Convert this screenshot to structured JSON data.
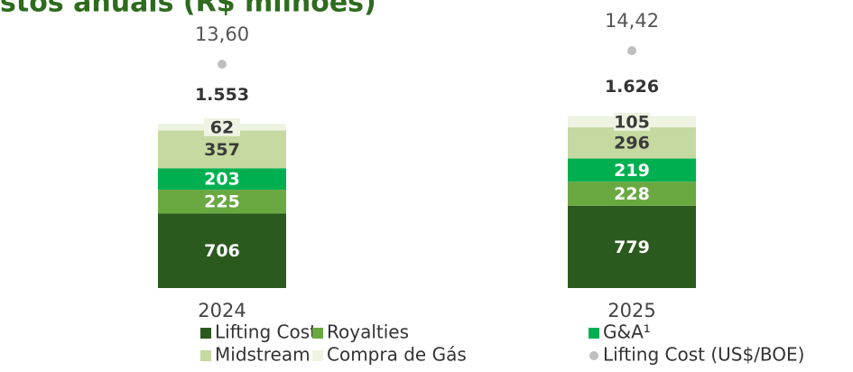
{
  "chart_data": {
    "type": "stacked_bar",
    "title": "stos anuais (R$ milhões)",
    "categories": [
      "2024",
      "2025"
    ],
    "series": [
      {
        "name": "Lifting Cost",
        "color": "#2b5a1e",
        "values": [
          706,
          779
        ]
      },
      {
        "name": "Royalties",
        "color": "#6aa842",
        "values": [
          225,
          228
        ]
      },
      {
        "name": "G&A¹",
        "color": "#00b050",
        "values": [
          203,
          219
        ]
      },
      {
        "name": "Midstream",
        "color": "#c5d9a0",
        "values": [
          357,
          296
        ]
      },
      {
        "name": "Compra de Gás",
        "color": "#eef3e2",
        "values": [
          62,
          105
        ]
      }
    ],
    "totals": {
      "values": [
        1553,
        1626
      ],
      "value_labels": [
        "1.553",
        "1.626"
      ]
    },
    "dots": {
      "name": "Lifting Cost (US$/BOE)",
      "color": "#bfbfbf",
      "values": [
        13.6,
        14.42
      ],
      "value_labels": [
        "13,60",
        "14,42"
      ]
    }
  }
}
